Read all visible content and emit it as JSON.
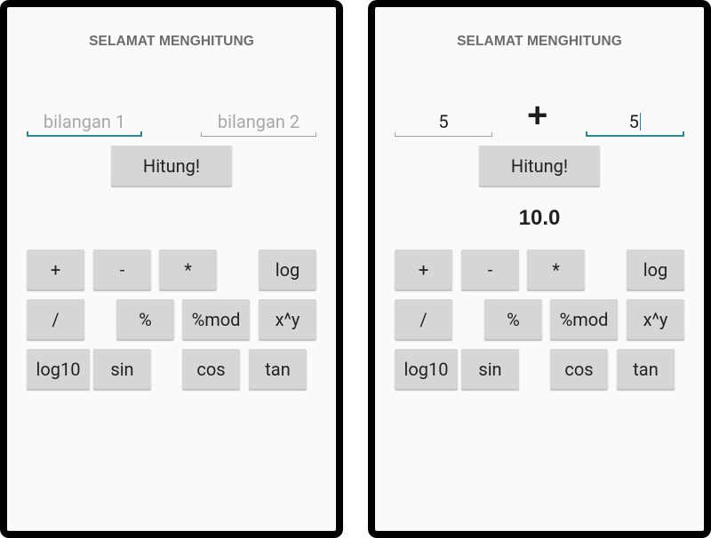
{
  "left_screen": {
    "title": "SELAMAT MENGHITUNG",
    "input1": {
      "value": "",
      "placeholder": "bilangan 1"
    },
    "input2": {
      "value": "",
      "placeholder": "bilangan 2"
    },
    "hitung_label": "Hitung!",
    "ops": {
      "plus": "+",
      "minus": "-",
      "times": "*",
      "log": "log",
      "div": "/",
      "pct": "%",
      "mod": "%mod",
      "pow": "x^y",
      "log10": "log10",
      "sin": "sin",
      "cos": "cos",
      "tan": "tan"
    }
  },
  "right_screen": {
    "title": "SELAMAT MENGHITUNG",
    "input1": {
      "value": "5"
    },
    "operator_display": "+",
    "input2": {
      "value": "5"
    },
    "hitung_label": "Hitung!",
    "result": "10.0",
    "ops": {
      "plus": "+",
      "minus": "-",
      "times": "*",
      "log": "log",
      "div": "/",
      "pct": "%",
      "mod": "%mod",
      "pow": "x^y",
      "log10": "log10",
      "sin": "sin",
      "cos": "cos",
      "tan": "tan"
    }
  },
  "colors": {
    "accent": "#2a8a94",
    "button": "#d6d6d6",
    "background": "#fafafa",
    "frame": "#000000"
  }
}
